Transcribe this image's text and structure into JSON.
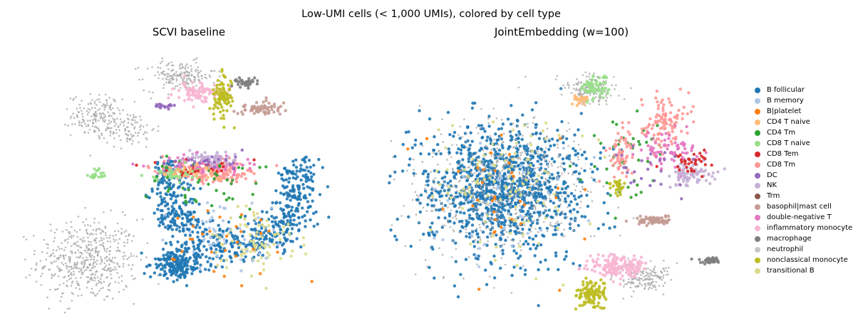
{
  "figure": {
    "suptitle": "Low-UMI cells (< 1,000 UMIs), colored by cell type"
  },
  "chart_data": [
    {
      "type": "scatter",
      "title": "SCVI baseline",
      "xlabel": "",
      "ylabel": "",
      "axes_visible": false,
      "grid": false,
      "legend": "right (shared)",
      "clusters": [
        {
          "name": "neutrophil",
          "cx": -3.6,
          "cy": -1.4,
          "rx": 2.0,
          "ry": 1.4,
          "n": 520,
          "arc": null
        },
        {
          "name": "neutrophil",
          "cx": -3.3,
          "cy": 3.0,
          "rx": 1.0,
          "ry": 0.7,
          "n": 170,
          "arc": null
        },
        {
          "name": "neutrophil",
          "cx": -0.3,
          "cy": 4.2,
          "rx": 1.4,
          "ry": 0.5,
          "n": 180,
          "arc": null
        },
        {
          "name": "neutrophil",
          "cx": -2.1,
          "cy": 2.6,
          "rx": 1.0,
          "ry": 0.6,
          "n": 90,
          "arc": null
        },
        {
          "name": "B follicular",
          "cx": 1.6,
          "cy": -1.0,
          "rx": 0.5,
          "ry": 0.5,
          "n": 650,
          "arc": {
            "cx": 1.6,
            "cy": 0.8,
            "rx": 2.4,
            "ry": 1.8,
            "t0": 0.35,
            "t1": 1.65,
            "w": 0.45
          }
        },
        {
          "name": "B follicular",
          "cx": -0.4,
          "cy": -1.5,
          "rx": 1.0,
          "ry": 0.5,
          "n": 200,
          "arc": null
        },
        {
          "name": "transitional B",
          "cx": 2.4,
          "cy": -0.9,
          "rx": 1.6,
          "ry": 1.0,
          "n": 80,
          "arc": null
        },
        {
          "name": "B memory",
          "cx": 1.5,
          "cy": -0.6,
          "rx": 2.2,
          "ry": 1.2,
          "n": 45,
          "arc": null
        },
        {
          "name": "B|platelet",
          "cx": 1.3,
          "cy": -0.9,
          "rx": 2.4,
          "ry": 1.4,
          "n": 30,
          "arc": null
        },
        {
          "name": "CD8 Tm",
          "cx": 0.8,
          "cy": 1.3,
          "rx": 1.9,
          "ry": 0.35,
          "n": 170,
          "arc": null
        },
        {
          "name": "double-negative T",
          "cx": 0.6,
          "cy": 1.5,
          "rx": 2.0,
          "ry": 0.35,
          "n": 70,
          "arc": null
        },
        {
          "name": "CD8 T naive",
          "cx": -0.5,
          "cy": 1.2,
          "rx": 1.0,
          "ry": 0.3,
          "n": 55,
          "arc": null
        },
        {
          "name": "CD8 Tem",
          "cx": 0.2,
          "cy": 1.4,
          "rx": 2.0,
          "ry": 0.4,
          "n": 30,
          "arc": null
        },
        {
          "name": "CD4 Tm",
          "cx": 0.8,
          "cy": 1.0,
          "rx": 2.0,
          "ry": 0.9,
          "n": 45,
          "arc": null
        },
        {
          "name": "NK",
          "cx": 0.8,
          "cy": 1.7,
          "rx": 1.2,
          "ry": 0.25,
          "n": 60,
          "arc": null
        },
        {
          "name": "DC",
          "cx": 0.6,
          "cy": 1.6,
          "rx": 1.6,
          "ry": 0.3,
          "n": 25,
          "arc": null
        },
        {
          "name": "CD4 T naive",
          "cx": 0.2,
          "cy": 1.3,
          "rx": 1.5,
          "ry": 0.3,
          "n": 25,
          "arc": null
        },
        {
          "name": "inflammatory monocyte",
          "cx": 0.3,
          "cy": 3.7,
          "rx": 0.9,
          "ry": 0.3,
          "n": 90,
          "arc": null
        },
        {
          "name": "nonclassical monocyte",
          "cx": 1.2,
          "cy": 3.6,
          "rx": 0.4,
          "ry": 0.7,
          "n": 100,
          "arc": null
        },
        {
          "name": "basophil|mast cell",
          "cx": 2.6,
          "cy": 3.2,
          "rx": 0.9,
          "ry": 0.25,
          "n": 70,
          "arc": null
        },
        {
          "name": "macrophage",
          "cx": 2.0,
          "cy": 4.0,
          "rx": 0.5,
          "ry": 0.15,
          "n": 40,
          "arc": null
        },
        {
          "name": "CD8 T naive",
          "cx": -3.3,
          "cy": 1.2,
          "rx": 0.3,
          "ry": 0.2,
          "n": 20,
          "arc": null
        },
        {
          "name": "DC",
          "cx": -0.8,
          "cy": 3.3,
          "rx": 0.4,
          "ry": 0.1,
          "n": 18,
          "arc": null
        }
      ]
    },
    {
      "type": "scatter",
      "title": "JointEmbedding (w=100)",
      "xlabel": "",
      "ylabel": "",
      "axes_visible": false,
      "grid": false,
      "legend": "right (shared)",
      "clusters": [
        {
          "name": "B follicular",
          "cx": -1.8,
          "cy": 0.8,
          "rx": 2.6,
          "ry": 2.2,
          "n": 1100,
          "arc": null
        },
        {
          "name": "neutrophil",
          "cx": -1.8,
          "cy": 0.8,
          "rx": 2.8,
          "ry": 2.3,
          "n": 650,
          "arc": null
        },
        {
          "name": "neutrophil",
          "cx": 2.4,
          "cy": -1.9,
          "rx": 0.8,
          "ry": 0.5,
          "n": 170,
          "arc": null
        },
        {
          "name": "neutrophil",
          "cx": 0.8,
          "cy": 3.8,
          "rx": 0.8,
          "ry": 0.5,
          "n": 160,
          "arc": null
        },
        {
          "name": "transitional B",
          "cx": -1.8,
          "cy": 0.8,
          "rx": 2.6,
          "ry": 2.1,
          "n": 110,
          "arc": null
        },
        {
          "name": "B memory",
          "cx": -1.6,
          "cy": 0.6,
          "rx": 2.4,
          "ry": 2.0,
          "n": 40,
          "arc": null
        },
        {
          "name": "B|platelet",
          "cx": -1.8,
          "cy": 0.6,
          "rx": 2.5,
          "ry": 2.0,
          "n": 35,
          "arc": null
        },
        {
          "name": "CD8 T naive",
          "cx": 0.9,
          "cy": 3.9,
          "rx": 0.6,
          "ry": 0.4,
          "n": 60,
          "arc": null
        },
        {
          "name": "CD4 T naive",
          "cx": 0.5,
          "cy": 3.5,
          "rx": 0.3,
          "ry": 0.2,
          "n": 25,
          "arc": null
        },
        {
          "name": "CD4 Tm",
          "cx": 1.8,
          "cy": 1.8,
          "rx": 1.5,
          "ry": 1.5,
          "n": 45,
          "arc": null
        },
        {
          "name": "CD8 Tm",
          "cx": 3.0,
          "cy": 2.8,
          "rx": 0.8,
          "ry": 0.9,
          "n": 110,
          "arc": null
        },
        {
          "name": "CD8 Tm",
          "cx": 1.7,
          "cy": 1.8,
          "rx": 0.4,
          "ry": 0.8,
          "n": 60,
          "arc": null
        },
        {
          "name": "double-negative T",
          "cx": 3.2,
          "cy": 1.9,
          "rx": 0.9,
          "ry": 0.6,
          "n": 70,
          "arc": null
        },
        {
          "name": "NK",
          "cx": 3.8,
          "cy": 1.2,
          "rx": 0.7,
          "ry": 0.4,
          "n": 80,
          "arc": null
        },
        {
          "name": "CD8 Tem",
          "cx": 3.7,
          "cy": 1.6,
          "rx": 0.7,
          "ry": 0.5,
          "n": 35,
          "arc": null
        },
        {
          "name": "DC",
          "cx": 2.6,
          "cy": 1.3,
          "rx": 1.2,
          "ry": 0.8,
          "n": 25,
          "arc": null
        },
        {
          "name": "basophil|mast cell",
          "cx": 2.7,
          "cy": -0.2,
          "rx": 0.6,
          "ry": 0.15,
          "n": 70,
          "arc": null
        },
        {
          "name": "macrophage",
          "cx": 4.3,
          "cy": -1.4,
          "rx": 0.35,
          "ry": 0.1,
          "n": 50,
          "arc": null
        },
        {
          "name": "inflammatory monocyte",
          "cx": 1.6,
          "cy": -1.6,
          "rx": 0.9,
          "ry": 0.4,
          "n": 170,
          "arc": null
        },
        {
          "name": "nonclassical monocyte",
          "cx": 0.8,
          "cy": -2.4,
          "rx": 0.5,
          "ry": 0.5,
          "n": 110,
          "arc": null
        },
        {
          "name": "nonclassical monocyte",
          "cx": 1.6,
          "cy": 0.8,
          "rx": 0.25,
          "ry": 0.3,
          "n": 30,
          "arc": null
        }
      ]
    }
  ],
  "legend": {
    "items": [
      {
        "label": "B follicular",
        "color": "#1f77b4"
      },
      {
        "label": "B memory",
        "color": "#aec7e8"
      },
      {
        "label": "B|platelet",
        "color": "#ff7f0e"
      },
      {
        "label": "CD4 T naive",
        "color": "#ffbb78"
      },
      {
        "label": "CD4 Tm",
        "color": "#2ca02c"
      },
      {
        "label": "CD8 T naive",
        "color": "#98df8a"
      },
      {
        "label": "CD8 Tem",
        "color": "#d62728"
      },
      {
        "label": "CD8 Tm",
        "color": "#ff9896"
      },
      {
        "label": "DC",
        "color": "#9467bd"
      },
      {
        "label": "NK",
        "color": "#c5b0d5"
      },
      {
        "label": "Trm",
        "color": "#8c564b"
      },
      {
        "label": "basophil|mast cell",
        "color": "#c49c94"
      },
      {
        "label": "double-negative T",
        "color": "#e377c2"
      },
      {
        "label": "inflammatory monocyte",
        "color": "#f7b6d2"
      },
      {
        "label": "macrophage",
        "color": "#7f7f7f"
      },
      {
        "label": "neutrophil",
        "color": "#c7c7c7"
      },
      {
        "label": "nonclassical monocyte",
        "color": "#bcbd22"
      },
      {
        "label": "transitional B",
        "color": "#dbdb8d"
      }
    ]
  }
}
